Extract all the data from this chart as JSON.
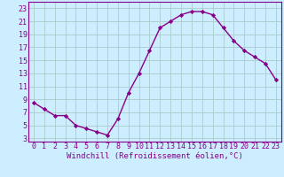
{
  "x": [
    0,
    1,
    2,
    3,
    4,
    5,
    6,
    7,
    8,
    9,
    10,
    11,
    12,
    13,
    14,
    15,
    16,
    17,
    18,
    19,
    20,
    21,
    22,
    23
  ],
  "y": [
    8.5,
    7.5,
    6.5,
    6.5,
    5.0,
    4.5,
    4.0,
    3.5,
    6.0,
    10.0,
    13.0,
    16.5,
    20.0,
    21.0,
    22.0,
    22.5,
    22.5,
    22.0,
    20.0,
    18.0,
    16.5,
    15.5,
    14.5,
    12.0
  ],
  "line_color": "#880088",
  "bg_color": "#cceeff",
  "grid_color": "#aacccc",
  "xlabel": "Windchill (Refroidissement éolien,°C)",
  "xlabel_color": "#880088",
  "tick_color": "#880088",
  "yticks": [
    3,
    5,
    7,
    9,
    11,
    13,
    15,
    17,
    19,
    21,
    23
  ],
  "xticks": [
    0,
    1,
    2,
    3,
    4,
    5,
    6,
    7,
    8,
    9,
    10,
    11,
    12,
    13,
    14,
    15,
    16,
    17,
    18,
    19,
    20,
    21,
    22,
    23
  ],
  "ylim": [
    2.5,
    24.0
  ],
  "xlim": [
    -0.5,
    23.5
  ],
  "marker": "D",
  "marker_size": 2.2,
  "line_width": 1.0,
  "tick_fontsize": 6.0,
  "xlabel_fontsize": 6.5
}
